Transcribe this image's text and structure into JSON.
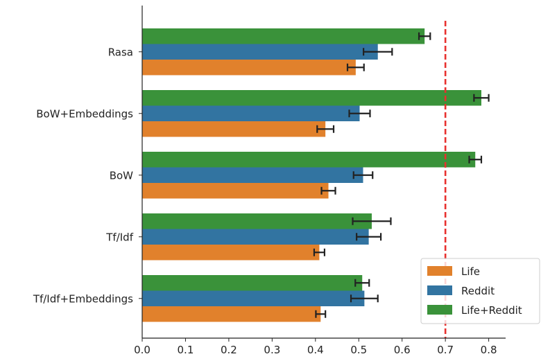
{
  "chart_data": {
    "type": "bar",
    "orientation": "horizontal",
    "title": "",
    "xlabel": "",
    "ylabel": "",
    "categories": [
      "Rasa",
      "BoW+Embeddings",
      "BoW",
      "Tf/Idf",
      "Tf/Idf+Embeddings"
    ],
    "series": [
      {
        "name": "Life+Reddit",
        "color": "#3a923a",
        "values": [
          0.652,
          0.783,
          0.769,
          0.53,
          0.508
        ],
        "errors": [
          0.013,
          0.017,
          0.014,
          0.044,
          0.016
        ]
      },
      {
        "name": "Reddit",
        "color": "#3274a1",
        "values": [
          0.544,
          0.502,
          0.51,
          0.523,
          0.513
        ],
        "errors": [
          0.033,
          0.024,
          0.022,
          0.028,
          0.031
        ]
      },
      {
        "name": "Life",
        "color": "#e1812c",
        "values": [
          0.493,
          0.423,
          0.43,
          0.409,
          0.412
        ],
        "errors": [
          0.019,
          0.019,
          0.016,
          0.012,
          0.011
        ]
      }
    ],
    "xlim": [
      0.0,
      0.84
    ],
    "xticks": [
      "0.0",
      "0.1",
      "0.2",
      "0.3",
      "0.4",
      "0.5",
      "0.6",
      "0.7",
      "0.8"
    ],
    "reference_line": {
      "x": 0.7,
      "color": "#e8302e",
      "style": "dashed"
    },
    "legend": {
      "placement": "lower-right",
      "entries": [
        "Life",
        "Reddit",
        "Life+Reddit"
      ]
    },
    "grid": false
  }
}
